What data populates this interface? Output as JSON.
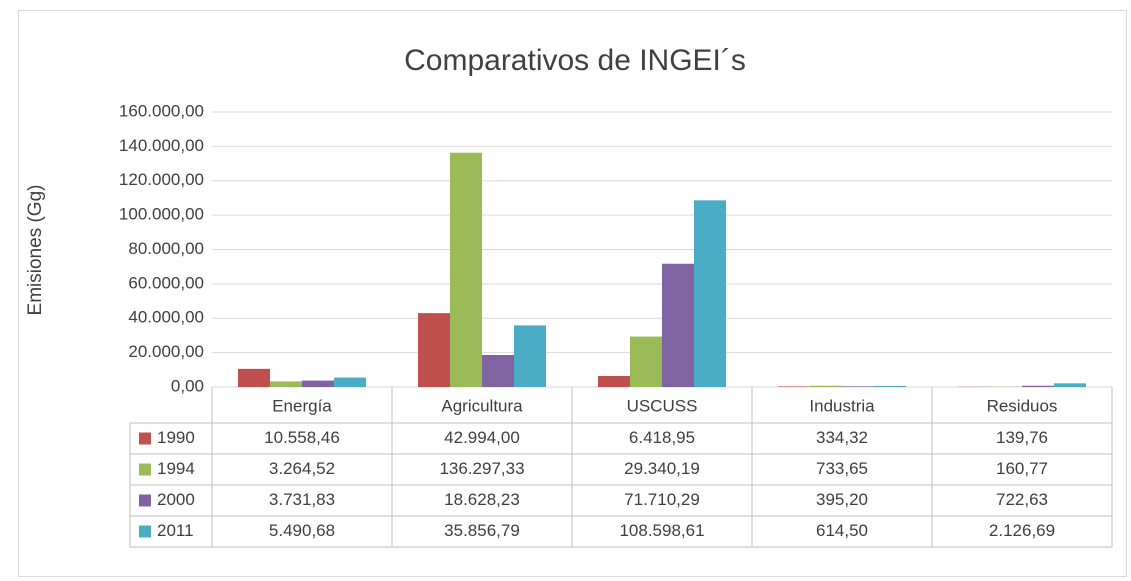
{
  "chart_data": {
    "type": "bar",
    "title": "Comparativos de INGEI´s",
    "y_label": "Emisiones (Gg)",
    "categories": [
      "Energía",
      "Agricultura",
      "USCUSS",
      "Industria",
      "Residuos"
    ],
    "series": [
      {
        "name": "1990",
        "color": "#c0504d",
        "values": [
          10558.46,
          42994.0,
          6418.95,
          334.32,
          139.76
        ],
        "value_labels": [
          "10.558,46",
          "42.994,00",
          "6.418,95",
          "334,32",
          "139,76"
        ]
      },
      {
        "name": "1994",
        "color": "#9bbb59",
        "values": [
          3264.52,
          136297.33,
          29340.19,
          733.65,
          160.77
        ],
        "value_labels": [
          "3.264,52",
          "136.297,33",
          "29.340,19",
          "733,65",
          "160,77"
        ]
      },
      {
        "name": "2000",
        "color": "#8064a2",
        "values": [
          3731.83,
          18628.23,
          71710.29,
          395.2,
          722.63
        ],
        "value_labels": [
          "3.731,83",
          "18.628,23",
          "71.710,29",
          "395,20",
          "722,63"
        ]
      },
      {
        "name": "2011",
        "color": "#4bacc6",
        "values": [
          5490.68,
          35856.79,
          108598.61,
          614.5,
          2126.69
        ],
        "value_labels": [
          "5.490,68",
          "35.856,79",
          "108.598,61",
          "614,50",
          "2.126,69"
        ]
      }
    ],
    "ylim": [
      0,
      160000
    ],
    "yticks": [
      {
        "value": 0,
        "label": "0,00"
      },
      {
        "value": 20000,
        "label": "20.000,00"
      },
      {
        "value": 40000,
        "label": "40.000,00"
      },
      {
        "value": 60000,
        "label": "60.000,00"
      },
      {
        "value": 80000,
        "label": "80.000,00"
      },
      {
        "value": 100000,
        "label": "100.000,00"
      },
      {
        "value": 120000,
        "label": "120.000,00"
      },
      {
        "value": 140000,
        "label": "140.000,00"
      },
      {
        "value": 160000,
        "label": "160.000,00"
      }
    ],
    "grid": true
  }
}
